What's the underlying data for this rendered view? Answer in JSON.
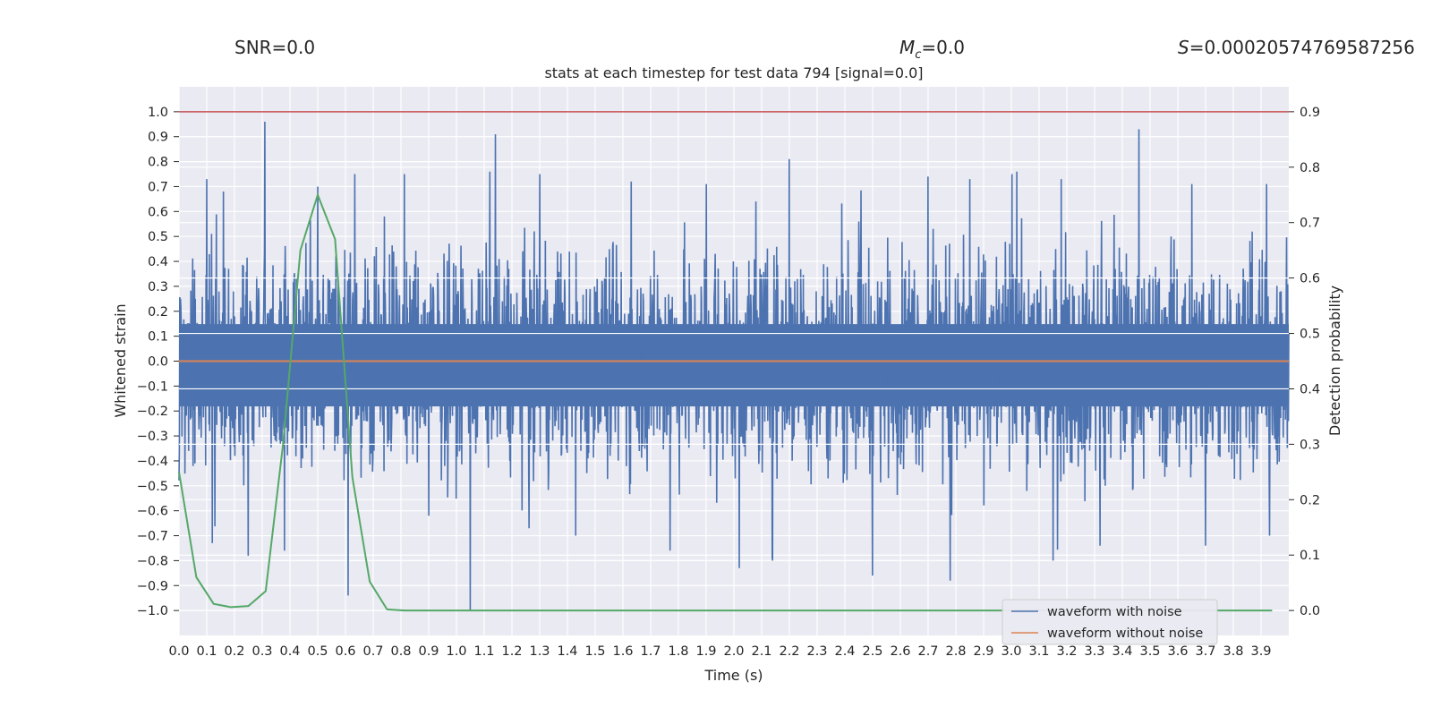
{
  "header": {
    "snr": "SNR=0.0",
    "mc_symbol": "M",
    "mc_sub": "c",
    "mc_value": "=0.0",
    "s_symbol": "S",
    "s_value": "=0.00020574769587256"
  },
  "chart_data": {
    "type": "line",
    "title": "stats at each timestep for test data 794 [signal=0.0]",
    "xlabel": "Time (s)",
    "ylabel": "Whitened strain",
    "y2label": "Detection probability",
    "xlim": [
      0.0,
      4.0
    ],
    "ylim": [
      -1.1,
      1.1
    ],
    "y2lim": [
      -0.045,
      0.945
    ],
    "x_ticks": [
      "0.0",
      "0.1",
      "0.2",
      "0.3",
      "0.4",
      "0.5",
      "0.6",
      "0.7",
      "0.8",
      "0.9",
      "1.0",
      "1.1",
      "1.2",
      "1.3",
      "1.4",
      "1.5",
      "1.6",
      "1.7",
      "1.8",
      "1.9",
      "2.0",
      "2.1",
      "2.2",
      "2.3",
      "2.4",
      "2.5",
      "2.6",
      "2.7",
      "2.8",
      "2.9",
      "3.0",
      "3.1",
      "3.2",
      "3.3",
      "3.4",
      "3.5",
      "3.6",
      "3.7",
      "3.8",
      "3.9"
    ],
    "y_ticks": [
      "1.0",
      "0.9",
      "0.8",
      "0.7",
      "0.6",
      "0.5",
      "0.4",
      "0.3",
      "0.2",
      "0.1",
      "0.0",
      "-0.1",
      "-0.2",
      "-0.3",
      "-0.4",
      "-0.5",
      "-0.6",
      "-0.7",
      "-0.8",
      "-0.9",
      "-1.0"
    ],
    "y2_ticks": [
      "0.9",
      "0.8",
      "0.7",
      "0.6",
      "0.5",
      "0.4",
      "0.3",
      "0.2",
      "0.1",
      "0.0"
    ],
    "grid": true,
    "legend_position": "lower-right",
    "threshold": 0.9,
    "series": [
      {
        "name": "waveform with noise",
        "axis": "left",
        "color": "#4c72b0",
        "peaks": [
          {
            "x": 0.31,
            "y": 0.96
          },
          {
            "x": 0.1,
            "y": 0.73
          },
          {
            "x": 0.16,
            "y": 0.68
          },
          {
            "x": 0.5,
            "y": 0.7
          },
          {
            "x": 0.74,
            "y": 0.58
          },
          {
            "x": 1.14,
            "y": 0.91
          },
          {
            "x": 1.12,
            "y": 0.76
          },
          {
            "x": 1.3,
            "y": 0.75
          },
          {
            "x": 1.63,
            "y": 0.72
          },
          {
            "x": 1.9,
            "y": 0.71
          },
          {
            "x": 2.2,
            "y": 0.81
          },
          {
            "x": 2.08,
            "y": 0.64
          },
          {
            "x": 2.45,
            "y": 0.56
          },
          {
            "x": 2.7,
            "y": 0.74
          },
          {
            "x": 2.85,
            "y": 0.73
          },
          {
            "x": 3.02,
            "y": 0.76
          },
          {
            "x": 3.18,
            "y": 0.73
          },
          {
            "x": 3.46,
            "y": 0.93
          },
          {
            "x": 3.65,
            "y": 0.71
          },
          {
            "x": 3.92,
            "y": 0.71
          },
          {
            "x": 0.61,
            "y": -0.94
          },
          {
            "x": 1.05,
            "y": -1.0
          },
          {
            "x": 0.12,
            "y": -0.73
          },
          {
            "x": 0.25,
            "y": -0.78
          },
          {
            "x": 0.38,
            "y": -0.76
          },
          {
            "x": 0.9,
            "y": -0.62
          },
          {
            "x": 1.43,
            "y": -0.7
          },
          {
            "x": 1.77,
            "y": -0.76
          },
          {
            "x": 2.02,
            "y": -0.83
          },
          {
            "x": 2.14,
            "y": -0.8
          },
          {
            "x": 2.5,
            "y": -0.86
          },
          {
            "x": 2.78,
            "y": -0.88
          },
          {
            "x": 3.15,
            "y": -0.8
          },
          {
            "x": 3.32,
            "y": -0.74
          },
          {
            "x": 3.7,
            "y": -0.74
          },
          {
            "x": 3.93,
            "y": -0.7
          }
        ],
        "band": 0.33
      },
      {
        "name": "waveform without noise",
        "axis": "left",
        "color": "#dd8452",
        "x": [
          0.0,
          4.0
        ],
        "y": [
          0.0,
          0.0
        ]
      },
      {
        "name": "",
        "axis": "right",
        "color": "#55a868",
        "x": [
          0.0,
          0.0625,
          0.125,
          0.1875,
          0.25,
          0.3125,
          0.375,
          0.4375,
          0.5,
          0.5625,
          0.625,
          0.6875,
          0.75,
          0.8125,
          0.875,
          0.9375,
          1.0,
          3.94
        ],
        "y": [
          0.25,
          0.06,
          0.012,
          0.006,
          0.008,
          0.035,
          0.3,
          0.65,
          0.75,
          0.67,
          0.24,
          0.052,
          0.002,
          0.0,
          0.0,
          0.0,
          0.0,
          0.0
        ]
      }
    ]
  }
}
